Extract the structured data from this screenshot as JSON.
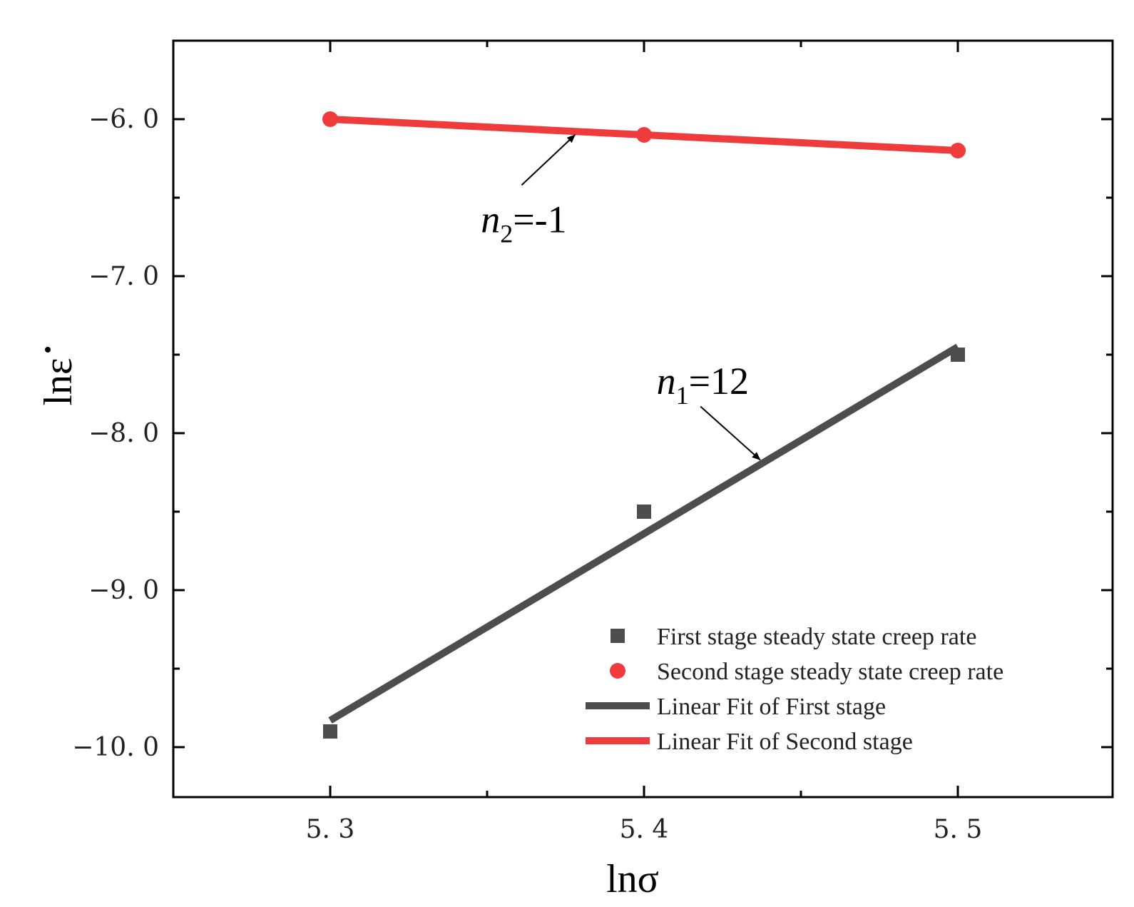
{
  "chart_data": {
    "type": "scatter",
    "xlabel": "lnσ",
    "ylabel": "lnε",
    "xlim": [
      5.25,
      5.55
    ],
    "ylim": [
      -10.3,
      -5.5
    ],
    "x_major_ticks": [
      5.3,
      5.4,
      5.5
    ],
    "x_minor_ticks": [
      5.35,
      5.45
    ],
    "x_tick_labels": [
      "5. 3",
      "5. 4",
      "5. 5"
    ],
    "y_major_ticks": [
      -10.0,
      -9.0,
      -8.0,
      -7.0,
      -6.0
    ],
    "y_minor_ticks": [
      -9.5,
      -8.5,
      -7.5,
      -6.5,
      -5.5
    ],
    "y_tick_labels": [
      "−10. 0",
      "−9. 0",
      "−8. 0",
      "−7. 0",
      "−6. 0"
    ],
    "grid": false,
    "legend_position": "bottom-right",
    "series": [
      {
        "name": "First stage steady state creep rate",
        "kind": "scatter",
        "marker": "square",
        "color": "#4d4d4d",
        "x": [
          5.3,
          5.4,
          5.5
        ],
        "y": [
          -9.9,
          -8.5,
          -7.5
        ]
      },
      {
        "name": "Second stage steady state creep rate",
        "kind": "scatter",
        "marker": "circle",
        "color": "#ef3b3b",
        "x": [
          5.3,
          5.4,
          5.5
        ],
        "y": [
          -6.0,
          -6.1,
          -6.2
        ]
      },
      {
        "name": "Linear Fit of First stage",
        "kind": "line",
        "color": "#4d4d4d",
        "x": [
          5.3,
          5.5
        ],
        "y": [
          -9.83,
          -7.45
        ]
      },
      {
        "name": "Linear Fit of Second stage",
        "kind": "line",
        "color": "#ef3b3b",
        "x": [
          5.3,
          5.5
        ],
        "y": [
          -6.0,
          -6.2
        ]
      }
    ],
    "annotations": [
      {
        "id": "n1",
        "var": "n",
        "sub": "1",
        "rest": "=12",
        "text_at": [
          5.404,
          -7.75
        ],
        "arrow_from": [
          5.418,
          -7.83
        ],
        "arrow_to": [
          5.437,
          -8.17
        ]
      },
      {
        "id": "n2",
        "var": "n",
        "sub": "2",
        "rest": "=-1",
        "text_at": [
          5.348,
          -6.72
        ],
        "arrow_from": [
          5.361,
          -6.42
        ],
        "arrow_to": [
          5.378,
          -6.1
        ]
      }
    ]
  }
}
